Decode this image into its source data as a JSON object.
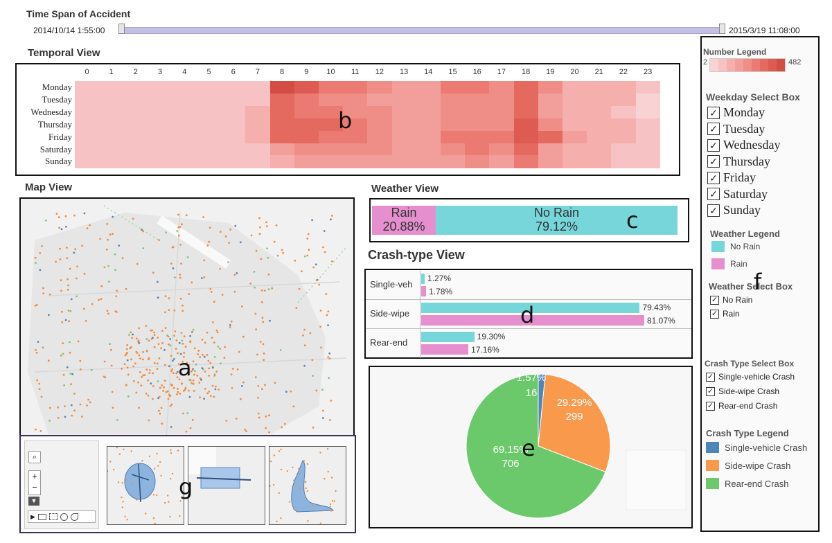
{
  "time_span": {
    "title": "Time Span of Accident",
    "start": "2014/10/14 1:55:00",
    "end": "2015/3/19 11:08:00",
    "range_fraction": [
      0.0,
      1.0
    ]
  },
  "temporal": {
    "title": "Temporal View",
    "letter": "b",
    "hours": [
      "0",
      "1",
      "2",
      "3",
      "4",
      "5",
      "6",
      "7",
      "8",
      "9",
      "10",
      "11",
      "12",
      "13",
      "14",
      "15",
      "16",
      "17",
      "18",
      "19",
      "20",
      "21",
      "22",
      "23"
    ],
    "days": [
      "Monday",
      "Tuesday",
      "Wednesday",
      "Thursday",
      "Friday",
      "Saturday",
      "Sunday"
    ],
    "values": [
      [
        2,
        2,
        2,
        2,
        2,
        2,
        2,
        2,
        9,
        8,
        6,
        6,
        5,
        4,
        4,
        6,
        6,
        5,
        7,
        5,
        3,
        3,
        3,
        2
      ],
      [
        2,
        2,
        2,
        2,
        2,
        2,
        2,
        2,
        7,
        6,
        5,
        5,
        4,
        4,
        4,
        5,
        5,
        5,
        7,
        4,
        3,
        3,
        3,
        1
      ],
      [
        2,
        2,
        2,
        2,
        2,
        2,
        2,
        3,
        7,
        6,
        6,
        5,
        5,
        4,
        4,
        5,
        5,
        5,
        7,
        4,
        3,
        3,
        2,
        1
      ],
      [
        2,
        2,
        2,
        2,
        2,
        2,
        2,
        3,
        7,
        7,
        7,
        6,
        5,
        4,
        4,
        5,
        5,
        5,
        8,
        5,
        3,
        3,
        3,
        2
      ],
      [
        2,
        2,
        2,
        2,
        2,
        2,
        2,
        3,
        7,
        7,
        6,
        6,
        5,
        4,
        4,
        6,
        6,
        6,
        8,
        7,
        4,
        3,
        3,
        2
      ],
      [
        2,
        2,
        2,
        2,
        2,
        2,
        2,
        2,
        4,
        5,
        5,
        5,
        5,
        4,
        4,
        5,
        6,
        5,
        7,
        4,
        3,
        3,
        2,
        2
      ],
      [
        2,
        2,
        2,
        2,
        2,
        2,
        2,
        2,
        3,
        4,
        4,
        4,
        4,
        4,
        4,
        4,
        5,
        4,
        6,
        4,
        3,
        3,
        2,
        2
      ]
    ],
    "palette": [
      "#fbe3e4",
      "#f9d3d4",
      "#f7c2c3",
      "#f5b0ae",
      "#f29f9b",
      "#ef8d87",
      "#ea7a72",
      "#e4695f",
      "#dd5b52",
      "#d44d44"
    ]
  },
  "map": {
    "title": "Map View",
    "letter": "a"
  },
  "map_g": {
    "letter": "g",
    "tools": [
      "zoom-search-icon",
      "zoom-in-icon",
      "zoom-out-icon",
      "pin-icon",
      "play-icon",
      "rect-select-icon",
      "lasso-icon",
      "circle-select-icon",
      "freehand-icon"
    ],
    "zoom_in": "+",
    "zoom_out": "−"
  },
  "weather": {
    "title": "Weather View",
    "letter": "c",
    "rain_label": "Rain",
    "rain_pct": "20.88%",
    "rain_fraction": 0.2088,
    "norain_label": "No Rain",
    "norain_pct": "79.12%",
    "colors": {
      "rain": "#e58fcf",
      "no_rain": "#76d6da"
    }
  },
  "crash": {
    "title": "Crash-type View",
    "letter": "d",
    "rows": [
      {
        "label": "Single-veh",
        "no_rain_pct": "1.27%",
        "rain_pct": "1.78%",
        "no_rain_value": 1.27,
        "rain_value": 1.78
      },
      {
        "label": "Side-wipe",
        "no_rain_pct": "79.43%",
        "rain_pct": "81.07%",
        "no_rain_value": 79.43,
        "rain_value": 81.07
      },
      {
        "label": "Rear-end",
        "no_rain_pct": "19.30%",
        "rain_pct": "17.16%",
        "no_rain_value": 19.3,
        "rain_value": 17.16
      }
    ]
  },
  "pie": {
    "letter": "e",
    "slices": [
      {
        "name": "Single-vehicle Crash",
        "value": 16,
        "pct": "1.57%",
        "count": "16",
        "color": "#4f86b8"
      },
      {
        "name": "Side-wipe Crash",
        "value": 299,
        "pct": "29.29%",
        "count": "299",
        "color": "#f8994c"
      },
      {
        "name": "Rear-end Crash",
        "value": 706,
        "pct": "69.15%",
        "count": "706",
        "color": "#6bc96b"
      }
    ]
  },
  "panel": {
    "letter": "f",
    "number_legend": {
      "title": "Number Legend",
      "min": "2",
      "max": "482"
    },
    "weekday_box": {
      "title": "Weekday Select Box",
      "items": [
        "Monday",
        "Tuesday",
        "Wednesday",
        "Thursday",
        "Friday",
        "Saturday",
        "Sunday"
      ]
    },
    "weather_legend": {
      "title": "Weather Legend",
      "items": [
        {
          "label": "No Rain",
          "color": "#76d6da"
        },
        {
          "label": "Rain",
          "color": "#e58fcf"
        }
      ]
    },
    "weather_box": {
      "title": "Weather Select Box",
      "items": [
        "No Rain",
        "Rain"
      ]
    },
    "crash_box": {
      "title": "Crash Type Select Box",
      "items": [
        "Single-vehicle Crash",
        "Side-wipe Crash",
        "Rear-end Crash"
      ]
    },
    "crash_legend": {
      "title": "Crash Type Legend",
      "items": [
        {
          "label": "Single-vehicle Crash",
          "color": "#4f86b8"
        },
        {
          "label": "Side-wipe Crash",
          "color": "#f8994c"
        },
        {
          "label": "Rear-end Crash",
          "color": "#6bc96b"
        }
      ]
    },
    "check_glyph": "✓"
  }
}
